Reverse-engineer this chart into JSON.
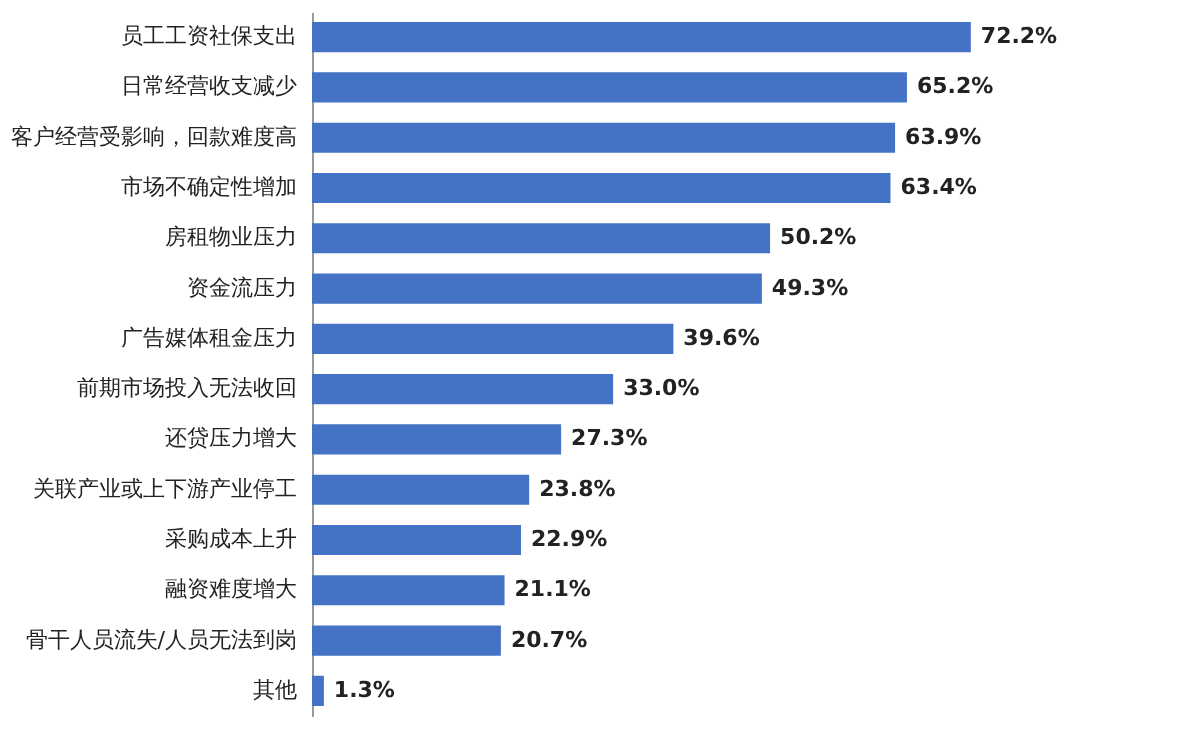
{
  "chart_data": {
    "type": "bar",
    "orientation": "horizontal",
    "color": "#4472c4",
    "categories": [
      "员工工资社保支出",
      "日常经营收支减少",
      "客户经营受影响，回款难度高",
      "市场不确定性增加",
      "房租物业压力",
      "资金流压力",
      "广告媒体租金压力",
      "前期市场投入无法收回",
      "还贷压力增大",
      "关联产业或上下游产业停工",
      "采购成本上升",
      "融资难度增大",
      "骨干人员流失/人员无法到岗",
      "其他"
    ],
    "values": [
      72.2,
      65.2,
      63.9,
      63.4,
      50.2,
      49.3,
      39.6,
      33.0,
      27.3,
      23.8,
      22.9,
      21.1,
      20.7,
      1.3
    ],
    "value_labels": [
      "72.2%",
      "65.2%",
      "63.9%",
      "63.4%",
      "50.2%",
      "49.3%",
      "39.6%",
      "33.0%",
      "27.3%",
      "23.8%",
      "22.9%",
      "21.1%",
      "20.7%",
      "1.3%"
    ],
    "grid": false
  }
}
